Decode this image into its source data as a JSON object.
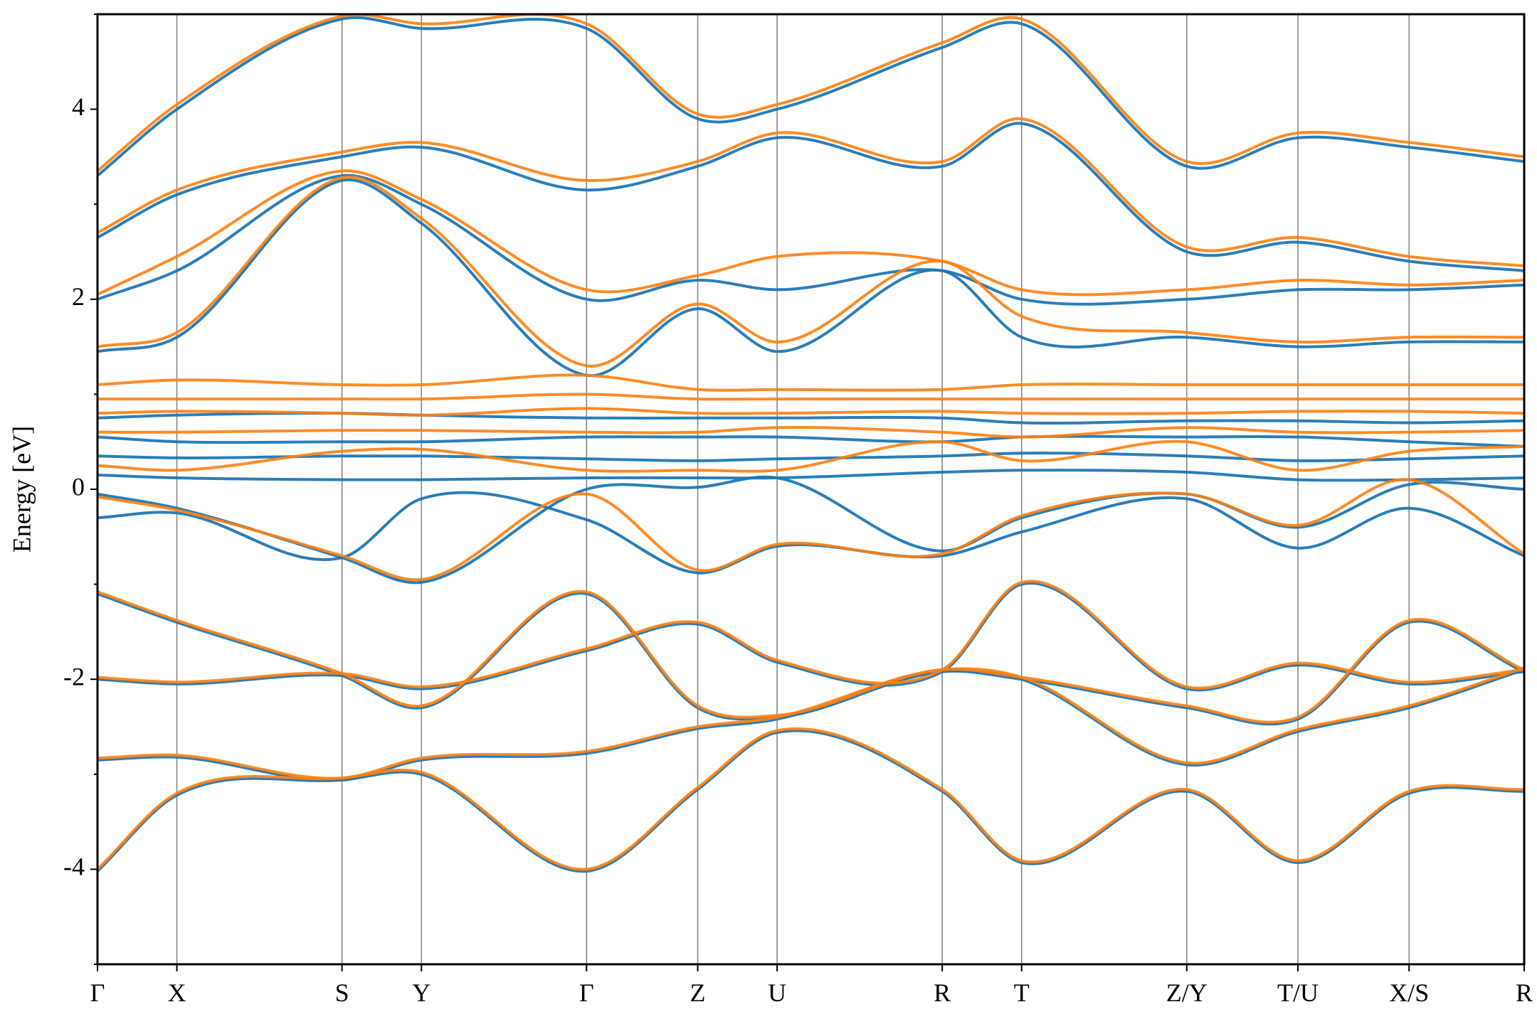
{
  "chart_data": {
    "type": "line",
    "ylabel": "Energy [eV]",
    "ylim": [
      -5,
      5
    ],
    "yticks": [
      -4,
      -2,
      0,
      2,
      4
    ],
    "ytick_labels": [
      "-4",
      "-2",
      "0",
      "2",
      "4"
    ],
    "xlim": [
      0,
      17.97
    ],
    "kpoints": [
      {
        "label": "Γ",
        "x": 0.0
      },
      {
        "label": "X",
        "x": 1.0
      },
      {
        "label": "S",
        "x": 3.08
      },
      {
        "label": "Y",
        "x": 4.08
      },
      {
        "label": "Γ",
        "x": 6.16
      },
      {
        "label": "Z",
        "x": 7.56
      },
      {
        "label": "U",
        "x": 8.56
      },
      {
        "label": "R",
        "x": 10.64
      },
      {
        "label": "T",
        "x": 11.64
      },
      {
        "label": "Z/Y",
        "x": 13.72
      },
      {
        "label": "T/U",
        "x": 15.12
      },
      {
        "label": "X/S",
        "x": 16.52
      },
      {
        "label": "R",
        "x": 17.97
      }
    ],
    "grid": false,
    "colors": {
      "series1": "#1f77b4",
      "series2": "#ff7f0e",
      "kline": "#7f7f7f"
    },
    "series": [
      {
        "color": "#1f77b4",
        "bands": [
          {
            "x": [
              0,
              1,
              3.08,
              4.08,
              6.16,
              7.56,
              8.56,
              10.64,
              11.64,
              13.72,
              15.12,
              16.52,
              17.97
            ],
            "y": [
              -4.02,
              -3.22,
              -3.06,
              -3.0,
              -4.02,
              -3.16,
              -2.56,
              -3.18,
              -3.93,
              -3.18,
              -3.93,
              -3.2,
              -3.18
            ]
          },
          {
            "x": [
              0,
              1,
              3.08,
              4.08,
              6.16,
              7.56,
              8.56,
              10.64,
              11.64,
              13.72,
              15.12,
              16.52,
              17.97
            ],
            "y": [
              -2.85,
              -2.82,
              -3.06,
              -2.85,
              -2.78,
              -2.52,
              -2.42,
              -1.92,
              -2.0,
              -2.9,
              -2.55,
              -2.3,
              -1.9
            ]
          },
          {
            "x": [
              0,
              1,
              3.08,
              4.08,
              6.16,
              7.56,
              8.56,
              10.64,
              11.64,
              13.72,
              15.12,
              16.52,
              17.97
            ],
            "y": [
              -2.0,
              -2.05,
              -1.96,
              -2.1,
              -1.7,
              -1.42,
              -1.82,
              -1.92,
              -1.0,
              -2.1,
              -1.85,
              -2.05,
              -1.92
            ]
          },
          {
            "x": [
              0,
              1,
              3.08,
              4.08,
              6.16,
              7.56,
              8.56,
              10.64,
              11.64,
              13.72,
              15.12,
              16.52,
              17.97
            ],
            "y": [
              -1.1,
              -1.4,
              -1.96,
              -2.3,
              -1.1,
              -2.3,
              -2.4,
              -1.92,
              -2.0,
              -2.3,
              -2.42,
              -1.4,
              -1.92
            ]
          },
          {
            "x": [
              0,
              1,
              3.08,
              4.08,
              6.16,
              7.56,
              8.56,
              10.64,
              11.64,
              13.72,
              15.12,
              16.52,
              17.97
            ],
            "y": [
              -0.3,
              -0.25,
              -0.72,
              -0.1,
              -0.32,
              -0.88,
              -0.6,
              -0.7,
              -0.45,
              -0.1,
              -0.62,
              -0.2,
              -0.7
            ]
          },
          {
            "x": [
              0,
              1,
              3.08,
              4.08,
              6.16,
              7.56,
              8.56,
              10.64,
              11.64,
              13.72,
              15.12,
              16.52,
              17.97
            ],
            "y": [
              -0.05,
              -0.2,
              -0.72,
              -0.98,
              0.0,
              0.02,
              0.12,
              -0.65,
              -0.3,
              -0.05,
              -0.4,
              0.05,
              0.0
            ]
          },
          {
            "x": [
              0,
              1,
              3.08,
              4.08,
              6.16,
              7.56,
              8.56,
              10.64,
              11.64,
              13.72,
              15.12,
              16.52,
              17.97
            ],
            "y": [
              0.15,
              0.12,
              0.1,
              0.1,
              0.12,
              0.12,
              0.12,
              0.18,
              0.2,
              0.18,
              0.1,
              0.1,
              0.12
            ]
          },
          {
            "x": [
              0,
              1,
              3.08,
              4.08,
              6.16,
              7.56,
              8.56,
              10.64,
              11.64,
              13.72,
              15.12,
              16.52,
              17.97
            ],
            "y": [
              0.35,
              0.33,
              0.35,
              0.35,
              0.32,
              0.3,
              0.32,
              0.35,
              0.38,
              0.35,
              0.3,
              0.32,
              0.35
            ]
          },
          {
            "x": [
              0,
              1,
              3.08,
              4.08,
              6.16,
              7.56,
              8.56,
              10.64,
              11.64,
              13.72,
              15.12,
              16.52,
              17.97
            ],
            "y": [
              0.55,
              0.5,
              0.5,
              0.5,
              0.55,
              0.55,
              0.55,
              0.5,
              0.55,
              0.55,
              0.55,
              0.5,
              0.45
            ]
          },
          {
            "x": [
              0,
              1,
              3.08,
              4.08,
              6.16,
              7.56,
              8.56,
              10.64,
              11.64,
              13.72,
              15.12,
              16.52,
              17.97
            ],
            "y": [
              0.75,
              0.78,
              0.8,
              0.78,
              0.75,
              0.75,
              0.75,
              0.75,
              0.7,
              0.72,
              0.72,
              0.7,
              0.72
            ]
          },
          {
            "x": [
              0,
              1,
              3.08,
              4.08,
              6.16,
              7.56,
              8.56,
              10.64,
              11.64,
              13.72,
              15.12,
              16.52,
              17.97
            ],
            "y": [
              1.45,
              1.6,
              3.25,
              2.8,
              1.2,
              1.9,
              1.45,
              2.3,
              1.6,
              1.6,
              1.5,
              1.55,
              1.55
            ]
          },
          {
            "x": [
              0,
              1,
              3.08,
              4.08,
              6.16,
              7.56,
              8.56,
              10.64,
              11.64,
              13.72,
              15.12,
              16.52,
              17.97
            ],
            "y": [
              2.0,
              2.3,
              3.3,
              3.0,
              2.0,
              2.2,
              2.1,
              2.3,
              2.0,
              2.0,
              2.1,
              2.1,
              2.15
            ]
          },
          {
            "x": [
              0,
              1,
              3.08,
              4.08,
              6.16,
              7.56,
              8.56,
              10.64,
              11.64,
              13.72,
              15.12,
              16.52,
              17.97
            ],
            "y": [
              2.65,
              3.1,
              3.5,
              3.6,
              3.15,
              3.4,
              3.7,
              3.4,
              3.85,
              2.5,
              2.6,
              2.4,
              2.3
            ]
          },
          {
            "x": [
              0,
              1,
              3.08,
              4.08,
              6.16,
              7.56,
              8.56,
              10.64,
              11.64,
              13.72,
              15.12,
              16.52,
              17.97
            ],
            "y": [
              3.3,
              4.0,
              4.95,
              4.85,
              4.85,
              3.9,
              4.0,
              4.65,
              4.9,
              3.4,
              3.7,
              3.6,
              3.45
            ]
          }
        ]
      },
      {
        "color": "#ff7f0e",
        "bands": [
          {
            "x": [
              0,
              1,
              3.08,
              4.08,
              6.16,
              7.56,
              8.56,
              10.64,
              11.64,
              13.72,
              15.12,
              16.52,
              17.97
            ],
            "y": [
              -4.0,
              -3.2,
              -3.04,
              -2.98,
              -4.0,
              -3.14,
              -2.54,
              -3.16,
              -3.91,
              -3.16,
              -3.91,
              -3.18,
              -3.16
            ]
          },
          {
            "x": [
              0,
              1,
              3.08,
              4.08,
              6.16,
              7.56,
              8.56,
              10.64,
              11.64,
              13.72,
              15.12,
              16.52,
              17.97
            ],
            "y": [
              -2.83,
              -2.8,
              -3.04,
              -2.83,
              -2.76,
              -2.5,
              -2.4,
              -1.9,
              -1.98,
              -2.88,
              -2.53,
              -2.28,
              -1.88
            ]
          },
          {
            "x": [
              0,
              1,
              3.08,
              4.08,
              6.16,
              7.56,
              8.56,
              10.64,
              11.64,
              13.72,
              15.12,
              16.52,
              17.97
            ],
            "y": [
              -1.98,
              -2.03,
              -1.94,
              -2.08,
              -1.68,
              -1.4,
              -1.8,
              -1.9,
              -0.98,
              -2.08,
              -1.83,
              -2.03,
              -1.9
            ]
          },
          {
            "x": [
              0,
              1,
              3.08,
              4.08,
              6.16,
              7.56,
              8.56,
              10.64,
              11.64,
              13.72,
              15.12,
              16.52,
              17.97
            ],
            "y": [
              -1.08,
              -1.38,
              -1.94,
              -2.28,
              -1.08,
              -2.28,
              -2.38,
              -1.9,
              -1.98,
              -2.28,
              -2.4,
              -1.38,
              -1.9
            ]
          },
          {
            "x": [
              0,
              1,
              3.08,
              4.08,
              6.16,
              7.56,
              8.56,
              10.64,
              11.64,
              13.72,
              15.12,
              16.52,
              17.97
            ],
            "y": [
              -0.08,
              -0.22,
              -0.7,
              -0.95,
              -0.05,
              -0.85,
              -0.58,
              -0.68,
              -0.28,
              -0.05,
              -0.38,
              0.1,
              -0.68
            ]
          },
          {
            "x": [
              0,
              1,
              3.08,
              4.08,
              6.16,
              7.56,
              8.56,
              10.64,
              11.64,
              13.72,
              15.12,
              16.52,
              17.97
            ],
            "y": [
              0.25,
              0.2,
              0.4,
              0.42,
              0.2,
              0.2,
              0.2,
              0.5,
              0.3,
              0.5,
              0.2,
              0.4,
              0.45
            ]
          },
          {
            "x": [
              0,
              1,
              3.08,
              4.08,
              6.16,
              7.56,
              8.56,
              10.64,
              11.64,
              13.72,
              15.12,
              16.52,
              17.97
            ],
            "y": [
              0.6,
              0.6,
              0.62,
              0.62,
              0.6,
              0.6,
              0.65,
              0.6,
              0.55,
              0.65,
              0.6,
              0.6,
              0.62
            ]
          },
          {
            "x": [
              0,
              1,
              3.08,
              4.08,
              6.16,
              7.56,
              8.56,
              10.64,
              11.64,
              13.72,
              15.12,
              16.52,
              17.97
            ],
            "y": [
              0.8,
              0.82,
              0.8,
              0.78,
              0.85,
              0.8,
              0.8,
              0.82,
              0.8,
              0.8,
              0.82,
              0.82,
              0.8
            ]
          },
          {
            "x": [
              0,
              1,
              3.08,
              4.08,
              6.16,
              7.56,
              8.56,
              10.64,
              11.64,
              13.72,
              15.12,
              16.52,
              17.97
            ],
            "y": [
              0.95,
              0.95,
              0.95,
              0.95,
              1.0,
              0.95,
              0.95,
              0.95,
              0.95,
              0.95,
              0.95,
              0.95,
              0.95
            ]
          },
          {
            "x": [
              0,
              1,
              3.08,
              4.08,
              6.16,
              7.56,
              8.56,
              10.64,
              11.64,
              13.72,
              15.12,
              16.52,
              17.97
            ],
            "y": [
              1.1,
              1.15,
              1.1,
              1.1,
              1.2,
              1.05,
              1.05,
              1.05,
              1.1,
              1.1,
              1.1,
              1.1,
              1.1
            ]
          },
          {
            "x": [
              0,
              1,
              3.08,
              4.08,
              6.16,
              7.56,
              8.56,
              10.64,
              11.64,
              13.72,
              15.12,
              16.52,
              17.97
            ],
            "y": [
              1.5,
              1.65,
              3.28,
              2.85,
              1.3,
              1.95,
              1.55,
              2.4,
              1.82,
              1.65,
              1.55,
              1.6,
              1.6
            ]
          },
          {
            "x": [
              0,
              1,
              3.08,
              4.08,
              6.16,
              7.56,
              8.56,
              10.64,
              11.64,
              13.72,
              15.12,
              16.52,
              17.97
            ],
            "y": [
              2.05,
              2.45,
              3.35,
              3.05,
              2.1,
              2.25,
              2.45,
              2.4,
              2.1,
              2.1,
              2.2,
              2.15,
              2.2
            ]
          },
          {
            "x": [
              0,
              1,
              3.08,
              4.08,
              6.16,
              7.56,
              8.56,
              10.64,
              11.64,
              13.72,
              15.12,
              16.52,
              17.97
            ],
            "y": [
              2.7,
              3.15,
              3.55,
              3.65,
              3.25,
              3.45,
              3.75,
              3.45,
              3.9,
              2.55,
              2.65,
              2.45,
              2.35
            ]
          },
          {
            "x": [
              0,
              1,
              3.08,
              4.08,
              6.16,
              7.56,
              8.56,
              10.64,
              11.64,
              13.72,
              15.12,
              16.52,
              17.97
            ],
            "y": [
              3.35,
              4.05,
              4.98,
              4.9,
              4.9,
              3.95,
              4.05,
              4.7,
              4.95,
              3.45,
              3.75,
              3.65,
              3.5
            ]
          }
        ]
      }
    ]
  }
}
